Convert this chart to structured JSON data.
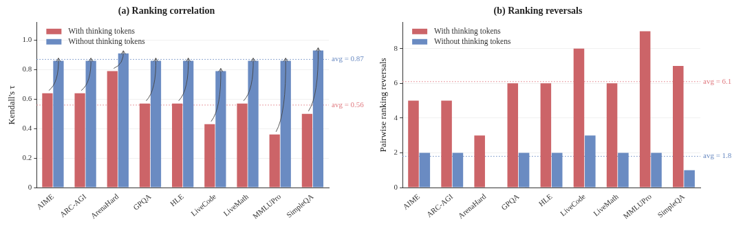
{
  "chart_data": [
    {
      "type": "bar",
      "title": "(a) Ranking correlation",
      "ylabel": "Kendall's τ",
      "categories": [
        "AIME",
        "ARC-AGI",
        "ArenaHard",
        "GPQA",
        "HLE",
        "LiveCode",
        "LiveMath",
        "MMLUPro",
        "SimpleQA"
      ],
      "series": [
        {
          "name": "With thinking tokens",
          "color": "#cc6468",
          "values": [
            0.64,
            0.64,
            0.79,
            0.57,
            0.57,
            0.43,
            0.57,
            0.36,
            0.5
          ]
        },
        {
          "name": "Without thinking tokens",
          "color": "#6a8bc2",
          "values": [
            0.86,
            0.86,
            0.91,
            0.86,
            0.86,
            0.79,
            0.86,
            0.86,
            0.93
          ]
        }
      ],
      "ylim": [
        0,
        1.12
      ],
      "yticks": [
        0,
        {
          "value": 0.2,
          "label": "0.2"
        },
        {
          "value": 0.4,
          "label": "0.4"
        },
        {
          "value": 0.6,
          "label": "0.6"
        },
        {
          "value": 0.8,
          "label": "0.8"
        },
        {
          "value": 1,
          "label": "1.0"
        }
      ],
      "ref_lines": [
        {
          "axis": "y",
          "value": 0.87,
          "label": "avg = 0.87",
          "color": "#6a8bc2",
          "line_style": "dotted"
        },
        {
          "axis": "y",
          "value": 0.56,
          "label": "avg = 0.56",
          "color": "#e07a80",
          "line_style": "dotted"
        }
      ],
      "grid": "y",
      "legend": "top left"
    },
    {
      "type": "bar",
      "title": "(b) Ranking reversals",
      "ylabel": "Pairwise ranking reversals",
      "categories": [
        "AIME",
        "ARC-AGI",
        "ArenaHard",
        "GPQA",
        "HLE",
        "LiveCode",
        "LiveMath",
        "MMLUPro",
        "SimpleQA"
      ],
      "series": [
        {
          "name": "With thinking tokens",
          "color": "#cc6468",
          "values": [
            5,
            5,
            3,
            6,
            6,
            8,
            6,
            9,
            7
          ]
        },
        {
          "name": "Without thinking tokens",
          "color": "#6a8bc2",
          "values": [
            2,
            2,
            0,
            2,
            2,
            3,
            2,
            2,
            1
          ]
        }
      ],
      "ylim": [
        0,
        9.5
      ],
      "yticks": [
        0,
        2,
        4,
        6,
        8
      ],
      "ref_lines": [
        {
          "axis": "y",
          "value": 6.1,
          "label": "avg = 6.1",
          "color": "#e07a80",
          "line_style": "dotted"
        },
        {
          "axis": "y",
          "value": 1.8,
          "label": "avg = 1.8",
          "color": "#6a8bc2",
          "line_style": "dotted"
        }
      ],
      "grid": "y",
      "legend": "top left"
    }
  ]
}
